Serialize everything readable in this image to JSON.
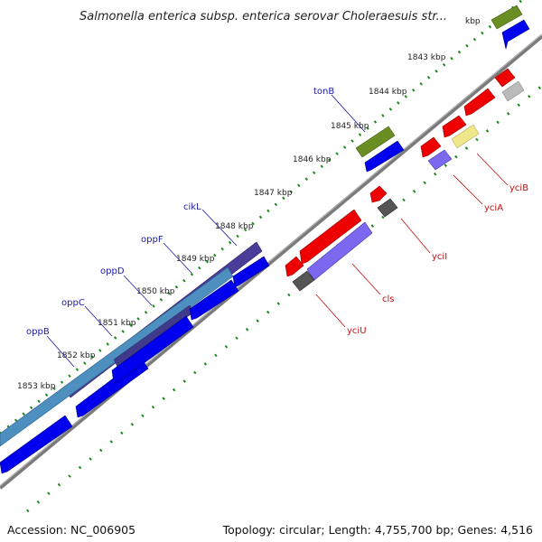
{
  "title": "Salmonella enterica subsp. enterica serovar Choleraesuis str...",
  "footer": {
    "accession": "Accession: NC_006905",
    "topology": "Topology: circular; Length: 4,755,700 bp; Genes: 4,516"
  },
  "ticks": [
    "kbp",
    "1843 kbp",
    "1844 kbp",
    "1845 kbp",
    "1846 kbp",
    "1847 kbp",
    "1848 kbp",
    "1849 kbp",
    "1850 kbp",
    "1851 kbp",
    "1852 kbp",
    "1853 kbp"
  ],
  "genes_forward": [
    "tonB",
    "cikL",
    "oppF",
    "oppD",
    "oppC",
    "oppB"
  ],
  "genes_reverse": [
    "yciB",
    "yciA",
    "yciI",
    "cls",
    "yciU"
  ],
  "colors": {
    "backbone": "#808080",
    "tick": "#1a8a1a",
    "cds_blue": "#0000ee",
    "opp_dark": "#4a3d99",
    "opp_steel": "#4d8fbf",
    "green": "#6b8e23",
    "red": "#ee0000",
    "lavender": "#7b68ee",
    "khaki": "#f0e68c",
    "gray_dark": "#555555",
    "gray_light": "#bbbbbb"
  }
}
